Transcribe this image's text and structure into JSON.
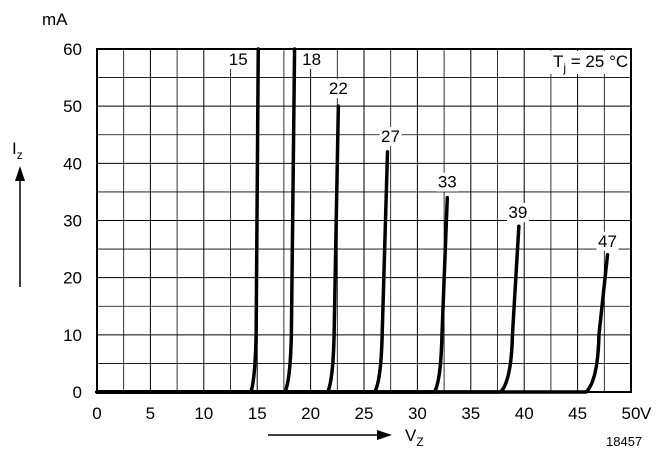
{
  "chart_data": {
    "type": "line",
    "x_unit": "V",
    "y_unit": "mA",
    "xlabel_main": "V",
    "xlabel_sub": "Z",
    "ylabel_main": "I",
    "ylabel_sub": "z",
    "xlim": [
      0,
      50
    ],
    "ylim": [
      0,
      60
    ],
    "x_ticks": [
      0,
      5,
      10,
      15,
      20,
      25,
      30,
      35,
      40,
      45,
      50
    ],
    "y_ticks": [
      0,
      10,
      20,
      30,
      40,
      50,
      60
    ],
    "x_minor_step": 2.5,
    "y_minor_step": 5,
    "grid": true,
    "annotation": {
      "main": "T",
      "sub": "j",
      "rest": " = 25 °C"
    },
    "figure_id": "18457",
    "series": [
      {
        "name": "15",
        "points": [
          [
            0,
            0
          ],
          [
            14.4,
            0
          ],
          [
            14.8,
            2
          ],
          [
            14.9,
            10
          ],
          [
            15.1,
            60
          ]
        ]
      },
      {
        "name": "18",
        "points": [
          [
            0,
            0
          ],
          [
            17.6,
            0
          ],
          [
            18.1,
            2
          ],
          [
            18.2,
            10
          ],
          [
            18.5,
            60
          ]
        ]
      },
      {
        "name": "22",
        "points": [
          [
            0,
            0
          ],
          [
            21.6,
            0
          ],
          [
            22.1,
            2
          ],
          [
            22.2,
            10
          ],
          [
            22.6,
            50
          ]
        ]
      },
      {
        "name": "27",
        "points": [
          [
            0,
            0
          ],
          [
            26.0,
            0
          ],
          [
            26.6,
            2
          ],
          [
            26.7,
            10
          ],
          [
            27.2,
            42
          ]
        ]
      },
      {
        "name": "33",
        "points": [
          [
            0,
            0
          ],
          [
            31.6,
            0
          ],
          [
            32.2,
            2
          ],
          [
            32.3,
            10
          ],
          [
            32.8,
            34
          ]
        ]
      },
      {
        "name": "39",
        "points": [
          [
            0,
            0
          ],
          [
            37.8,
            0
          ],
          [
            38.8,
            2
          ],
          [
            38.9,
            10
          ],
          [
            39.5,
            29
          ]
        ]
      },
      {
        "name": "47",
        "points": [
          [
            0,
            0
          ],
          [
            45.8,
            0
          ],
          [
            46.9,
            2
          ],
          [
            47.0,
            10
          ],
          [
            47.8,
            24
          ]
        ]
      }
    ]
  }
}
